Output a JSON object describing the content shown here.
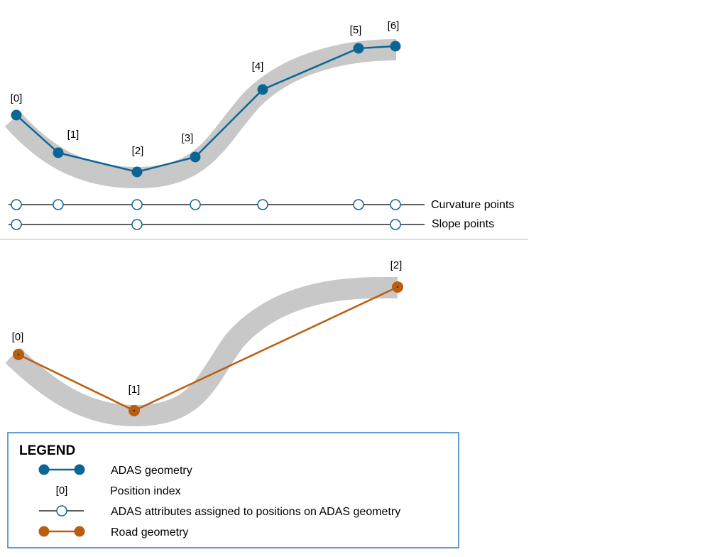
{
  "colors": {
    "adas": "#0b6696",
    "road": "#b95d0e",
    "band": "#c8c8c8",
    "divider": "#d0d0d0",
    "legend_border": "#2f7fc1"
  },
  "top_panel": {
    "adas_points": [
      {
        "index": "[0]"
      },
      {
        "index": "[1]"
      },
      {
        "index": "[2]"
      },
      {
        "index": "[3]"
      },
      {
        "index": "[4]"
      },
      {
        "index": "[5]"
      },
      {
        "index": "[6]"
      }
    ],
    "curvature_label": "Curvature points",
    "slope_label": "Slope points"
  },
  "bottom_panel": {
    "road_points": [
      {
        "index": "[0]"
      },
      {
        "index": "[1]"
      },
      {
        "index": "[2]"
      }
    ]
  },
  "legend": {
    "title": "LEGEND",
    "adas_geometry": "ADAS geometry",
    "position_index_sample": "[0]",
    "position_index": "Position index",
    "attributes": "ADAS attributes assigned to positions on ADAS geometry",
    "road_geometry": "Road geometry"
  }
}
